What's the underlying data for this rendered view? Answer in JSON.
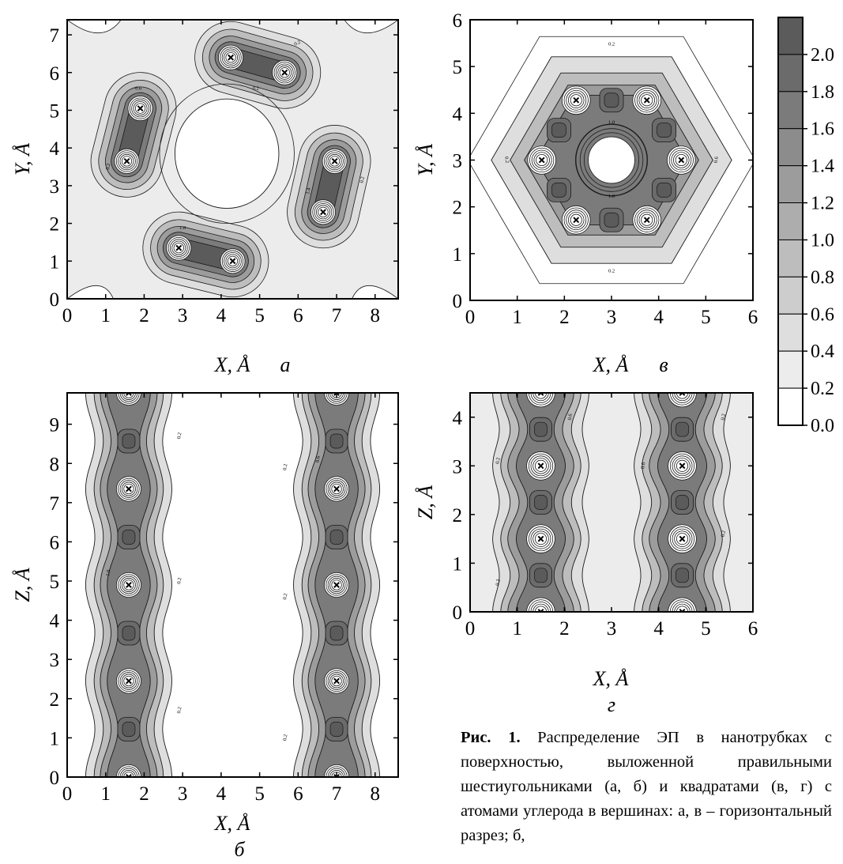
{
  "figure": {
    "caption_bold": "Рис. 1.",
    "caption_text": "Распределение ЭП в нанотрубках с поверхностью, выложенной правильными шестиугольниками (а, б) и квадратами (в, г) с атомами углерода в вершинах: а, в – горизонтальный разрез; б,"
  },
  "colors": {
    "levels": [
      "#ffffff",
      "#ececec",
      "#dedede",
      "#cdcdcd",
      "#bdbdbd",
      "#adadad",
      "#9c9c9c",
      "#8c8c8c",
      "#7b7b7b",
      "#6b6b6b",
      "#5b5b5b"
    ],
    "line": "#1a1a1a",
    "frame": "#000000"
  },
  "colorbar": {
    "tick_labels": [
      "2.0",
      "1.8",
      "1.6",
      "1.4",
      "1.2",
      "1.0",
      "0.8",
      "0.6",
      "0.4",
      "0.2",
      "0.0"
    ],
    "values": [
      2.0,
      1.8,
      1.6,
      1.4,
      1.2,
      1.0,
      0.8,
      0.6,
      0.4,
      0.2,
      0.0
    ]
  },
  "chart_data": [
    {
      "type": "heatmap",
      "panel_label": "а",
      "xlabel": "X, Å",
      "ylabel": "Y, Å",
      "xlim": [
        0,
        8.6
      ],
      "ylim": [
        0,
        7.4
      ],
      "xticks": [
        0,
        1,
        2,
        3,
        4,
        5,
        6,
        7,
        8
      ],
      "yticks": [
        0,
        1,
        2,
        3,
        4,
        5,
        6,
        7
      ],
      "contour_labels": [
        "0.2",
        "0.6",
        "1.0",
        "1.4"
      ],
      "atoms": [
        [
          1.9,
          5.05
        ],
        [
          1.55,
          3.65
        ],
        [
          4.25,
          6.4
        ],
        [
          5.65,
          6.0
        ],
        [
          6.95,
          3.65
        ],
        [
          6.65,
          2.3
        ],
        [
          2.9,
          1.35
        ],
        [
          4.3,
          1.0
        ]
      ]
    },
    {
      "type": "heatmap",
      "panel_label": "в",
      "xlabel": "X, Å",
      "ylabel": "Y, Å",
      "xlim": [
        0,
        6
      ],
      "ylim": [
        0,
        6
      ],
      "xticks": [
        0,
        1,
        2,
        3,
        4,
        5,
        6
      ],
      "yticks": [
        0,
        1,
        2,
        3,
        4,
        5,
        6
      ],
      "contour_labels": [
        "0.2",
        "0.6",
        "1.0",
        "1.4"
      ],
      "atoms": [
        [
          2.25,
          4.28
        ],
        [
          3.75,
          4.28
        ],
        [
          1.52,
          3.0
        ],
        [
          4.48,
          3.0
        ],
        [
          2.25,
          1.72
        ],
        [
          3.75,
          1.72
        ]
      ]
    },
    {
      "type": "heatmap",
      "panel_label": "б",
      "xlabel": "X, Å",
      "ylabel": "Z, Å",
      "xlim": [
        0,
        8.6
      ],
      "ylim": [
        0,
        9.8
      ],
      "xticks": [
        0,
        1,
        2,
        3,
        4,
        5,
        6,
        7,
        8
      ],
      "yticks": [
        0,
        1,
        2,
        3,
        4,
        5,
        6,
        7,
        8,
        9
      ],
      "contour_labels": [
        "0.2",
        "0.6",
        "1.0"
      ],
      "atoms": [
        [
          1.6,
          0.0
        ],
        [
          1.6,
          2.45
        ],
        [
          1.6,
          4.9
        ],
        [
          1.6,
          7.35
        ],
        [
          1.6,
          9.8
        ],
        [
          7.0,
          0.0
        ],
        [
          7.0,
          2.45
        ],
        [
          7.0,
          4.9
        ],
        [
          7.0,
          7.35
        ],
        [
          7.0,
          9.8
        ]
      ]
    },
    {
      "type": "heatmap",
      "panel_label": "г",
      "xlabel": "X, Å",
      "ylabel": "Z, Å",
      "xlim": [
        0,
        6
      ],
      "ylim": [
        0,
        4.5
      ],
      "xticks": [
        0,
        1,
        2,
        3,
        4,
        5,
        6
      ],
      "yticks": [
        0,
        1,
        2,
        3,
        4
      ],
      "contour_labels": [
        "0.2",
        "0.6",
        "1.0",
        "1.4"
      ],
      "atoms": [
        [
          1.5,
          0.0
        ],
        [
          1.5,
          1.5
        ],
        [
          1.5,
          3.0
        ],
        [
          1.5,
          4.5
        ],
        [
          4.5,
          0.0
        ],
        [
          4.5,
          1.5
        ],
        [
          4.5,
          3.0
        ],
        [
          4.5,
          4.5
        ]
      ]
    }
  ]
}
